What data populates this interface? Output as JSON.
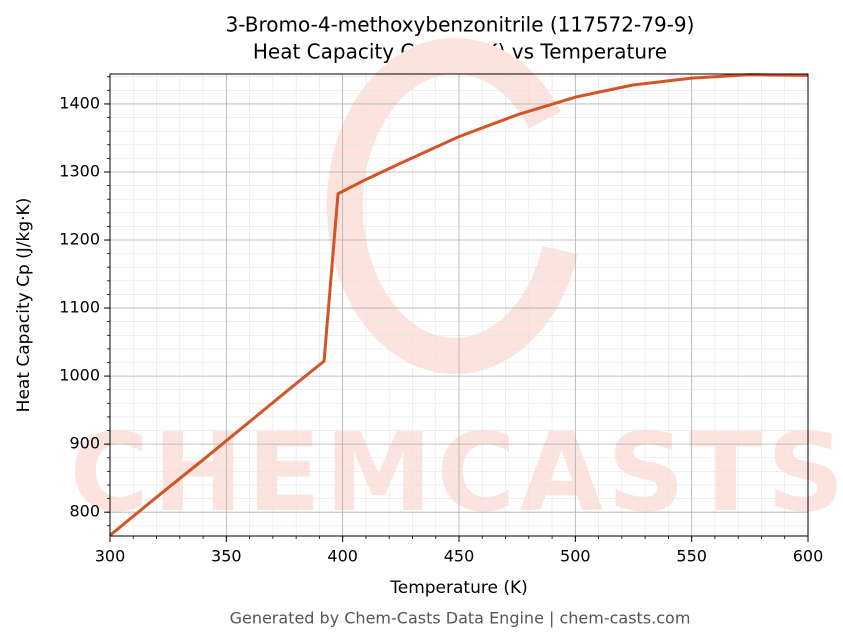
{
  "chart_data": {
    "type": "line",
    "title": "3-Bromo-4-methoxybenzonitrile (117572-79-9)",
    "subtitle": "Heat Capacity Cp (J/kg·K) vs Temperature",
    "x_label": "Temperature (K)",
    "y_label": "Heat Capacity Cp (J/kg·K)",
    "footer": "Generated by Chem-Casts Data Engine | chem-casts.com",
    "watermark": "CHEMCASTS",
    "x": [
      300,
      320,
      340,
      360,
      380,
      392,
      398,
      410,
      425,
      450,
      475,
      500,
      525,
      550,
      575,
      600
    ],
    "series": [
      {
        "name": "Cp",
        "color": "#d35427",
        "values": [
          766,
          822,
          877,
          933,
          989,
          1022,
          1268,
          1289,
          1313,
          1352,
          1384,
          1410,
          1428,
          1438,
          1443,
          1442
        ]
      }
    ],
    "xlim": [
      300,
      600
    ],
    "xticks": [
      300,
      350,
      400,
      450,
      500,
      550,
      600
    ],
    "ylim": [
      765,
      1444
    ],
    "yticks": [
      800,
      900,
      1000,
      1100,
      1200,
      1300,
      1400
    ],
    "grid": true,
    "minor_grid": true
  }
}
